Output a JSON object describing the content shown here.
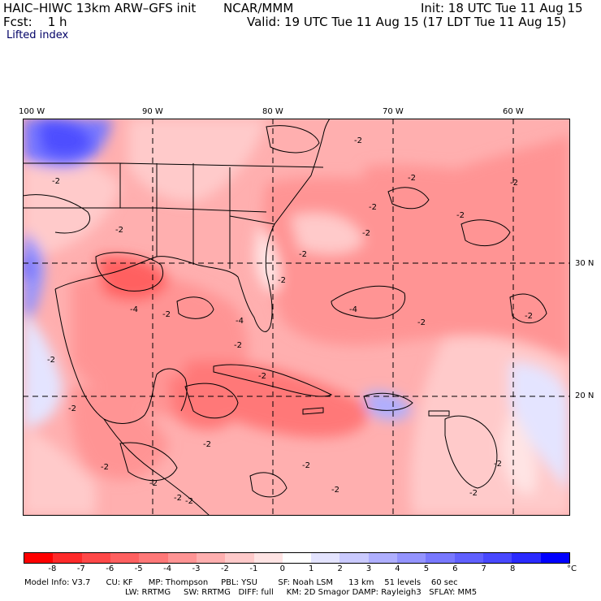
{
  "header": {
    "title": "HAIC–HIWC 13km ARW–GFS init",
    "org": "NCAR/MMM",
    "init": "Init: 18 UTC Tue 11 Aug 15",
    "fcst": "Fcst:    1 h",
    "valid": "Valid: 19 UTC Tue 11 Aug 15 (17 LDT Tue 11 Aug 15)",
    "field": "Lifted index"
  },
  "axes": {
    "lon_labels": [
      "100 W",
      "90 W",
      "80 W",
      "70 W",
      "60 W"
    ],
    "lat_labels": [
      "30 N",
      "20 N"
    ]
  },
  "contour_labels": [
    "-2",
    "-2",
    "-2",
    "-2",
    "-2",
    "-2",
    "-2",
    "-2",
    "-2",
    "-2",
    "-2",
    "-2",
    "-2",
    "-2",
    "-2",
    "-2",
    "-2",
    "-2",
    "-2",
    "-2",
    "-4",
    "-4",
    "-4",
    "-2",
    "-2",
    "-2",
    "-2",
    "-2",
    "-2"
  ],
  "colorbar": {
    "colors": [
      "#ff0000",
      "#ff2a2a",
      "#ff4848",
      "#ff6060",
      "#ff7878",
      "#ff9494",
      "#ffafaf",
      "#ffcaca",
      "#ffe4e4",
      "#ffffff",
      "#e4e4ff",
      "#cacaff",
      "#afafff",
      "#9494ff",
      "#7878ff",
      "#6060ff",
      "#4848ff",
      "#2a2aff",
      "#0000ff"
    ],
    "ticks": [
      "-8",
      "-7",
      "-6",
      "-5",
      "-4",
      "-3",
      "-2",
      "-1",
      "0",
      "1",
      "2",
      "3",
      "4",
      "5",
      "6",
      "7",
      "8"
    ],
    "unit": "°C"
  },
  "model_info": {
    "line1": "Model Info: V3.7      CU: KF      MP: Thompson     PBL: YSU        SF: Noah LSM      13 km    51 levels    60 sec",
    "line2": "LW: RRTMG     SW: RRTMG   DIFF: full     KM: 2D Smagor DAMP: Rayleigh3   SFLAY: MM5"
  }
}
